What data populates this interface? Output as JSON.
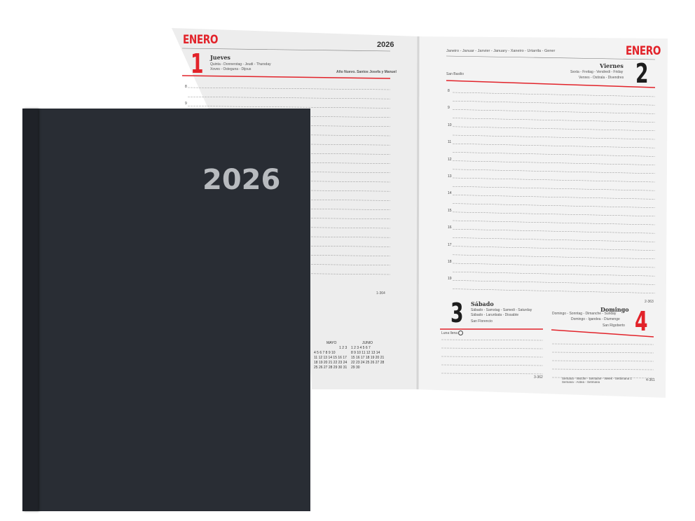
{
  "left_page": {
    "month": "ENERO",
    "year": "2026",
    "day_number": "1",
    "day_name": "Jueves",
    "translations": [
      "Quinta - Donnerstag - Jeudi - Thursday",
      "Xoves - Ostegunа - Dijous"
    ],
    "holiday": "Año Nuevo. Santos Josefa y Manuel",
    "page_count": "1-364",
    "hours": [
      "8",
      "9"
    ]
  },
  "right_page": {
    "month": "ENERO",
    "month_translations": "Janeiro - Januar - Janvier - January - Xaneiro - Urtarrila - Gener",
    "saint": "San Basilio",
    "day_number": "2",
    "day_name": "Viernes",
    "translations": [
      "Sexta - Freitag - Vendredi - Friday",
      "Venres - Ostirala - Divendres"
    ],
    "hours": [
      "8",
      "9",
      "10",
      "11",
      "12",
      "13",
      "14",
      "15",
      "16",
      "17",
      "18",
      "19"
    ],
    "page_count": "2-363",
    "saturday": {
      "day_number": "3",
      "day_name": "Sábado",
      "translations": [
        "Sábado - Samstag - Samedi - Saturday",
        "Sábado - Larunbata - Dissabte"
      ],
      "saint": "San Florencio",
      "moon": "Luna llena",
      "page_count": "3-362"
    },
    "sunday": {
      "day_number": "4",
      "day_name": "Domingo",
      "translations": [
        "Domingo - Sonntag - Dimanche - Sunday",
        "Domingo - Igandea - Diumenge"
      ],
      "saint": "San Rigoberto",
      "week_note": [
        "Semana - Woche - Semaine - Week - Settimana 1",
        "Semana - Astea - Setmana"
      ],
      "page_count": "4-361"
    }
  },
  "mini_calendar": {
    "months": [
      "MAYO",
      "JUNIO"
    ],
    "mayo": [
      "1 2 3",
      "4 5 6 7 8 9 10",
      "11 12 13 14 15 16 17",
      "18 19 20 21 22 23 24",
      "25 26 27 28 29 30 31"
    ],
    "junio": [
      "1 2 3 4 5 6 7",
      "8 9 10 11 12 13 14",
      "15 16 17 18 19 20 21",
      "22 23 24 25 26 27 28",
      "29 30"
    ]
  },
  "cover": {
    "year": "2026",
    "color": "#292d34"
  },
  "colors": {
    "accent": "#e2232a",
    "page": "#f2f2f2"
  }
}
